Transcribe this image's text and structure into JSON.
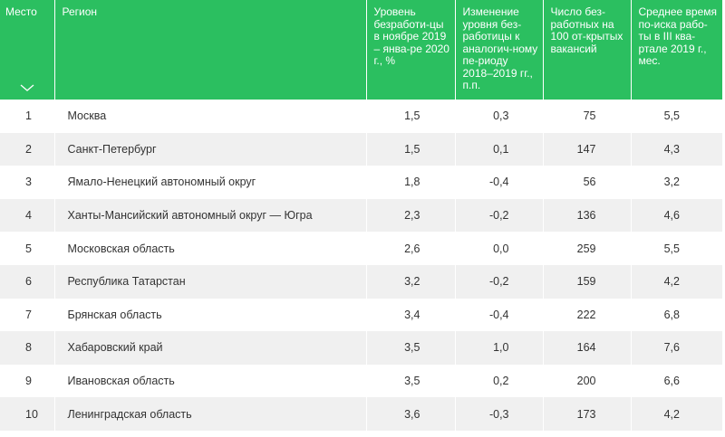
{
  "table": {
    "headers": {
      "rank": "Место",
      "region": "Регион",
      "rate": "Уровень безработи-цы в ноябре 2019 – янва-ре 2020 г., %",
      "change": "Изменение уровня без-работицы к аналогич-ному пе-риоду 2018–2019 гг., п.п.",
      "vacancies": "Число без-работных на 100 от-крытых вакансий",
      "search_time": "Среднее время по-иска рабо-ты в III ква-ртале 2019 г., мес."
    },
    "sort_icon": "chevron-down-icon",
    "rows": [
      {
        "rank": "1",
        "region": "Москва",
        "rate": "1,5",
        "change": "0,3",
        "vacancies": "75",
        "search_time": "5,5"
      },
      {
        "rank": "2",
        "region": "Санкт-Петербург",
        "rate": "1,5",
        "change": "0,1",
        "vacancies": "147",
        "search_time": "4,3"
      },
      {
        "rank": "3",
        "region": "Ямало-Ненецкий автономный округ",
        "rate": "1,8",
        "change": "-0,4",
        "vacancies": "56",
        "search_time": "3,2"
      },
      {
        "rank": "4",
        "region": "Ханты-Мансийский автономный округ — Югра",
        "rate": "2,3",
        "change": "-0,2",
        "vacancies": "136",
        "search_time": "4,6"
      },
      {
        "rank": "5",
        "region": "Московская область",
        "rate": "2,6",
        "change": "0,0",
        "vacancies": "259",
        "search_time": "5,5"
      },
      {
        "rank": "6",
        "region": "Республика Татарстан",
        "rate": "3,2",
        "change": "-0,2",
        "vacancies": "159",
        "search_time": "4,2"
      },
      {
        "rank": "7",
        "region": "Брянская область",
        "rate": "3,4",
        "change": "-0,4",
        "vacancies": "222",
        "search_time": "6,8"
      },
      {
        "rank": "8",
        "region": "Хабаровский край",
        "rate": "3,5",
        "change": "1,0",
        "vacancies": "164",
        "search_time": "7,6"
      },
      {
        "rank": "9",
        "region": "Ивановская область",
        "rate": "3,5",
        "change": "0,2",
        "vacancies": "200",
        "search_time": "6,6"
      },
      {
        "rank": "10",
        "region": "Ленинградская область",
        "rate": "3,6",
        "change": "-0,3",
        "vacancies": "173",
        "search_time": "4,2"
      }
    ]
  },
  "colors": {
    "header_bg": "#2bbf60",
    "header_text": "#ffffff",
    "stripe_bg": "#f0f0f0",
    "body_text": "#333333"
  }
}
